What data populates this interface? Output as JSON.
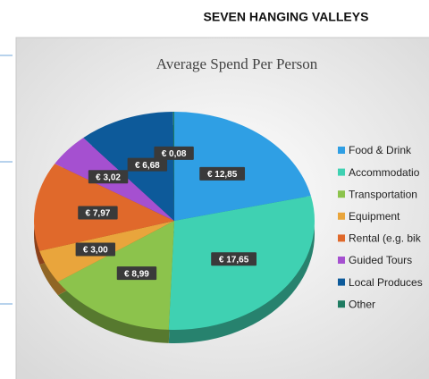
{
  "header": {
    "title": "SEVEN HANGING VALLEYS"
  },
  "chart_data": {
    "type": "pie",
    "title": "Average Spend Per Person",
    "categories": [
      "Food & Drink",
      "Accommodatio",
      "Transportation",
      "Equipment",
      "Rental (e.g. bik",
      "Guided Tours",
      "Local Produces",
      "Other"
    ],
    "values": [
      12.85,
      17.65,
      8.99,
      3.0,
      7.97,
      3.02,
      6.68,
      0.08
    ],
    "value_labels": [
      "€ 12,85",
      "€ 17,65",
      "€ 8,99",
      "€ 3,00",
      "€ 7,97",
      "€ 3,02",
      "€ 6,68",
      "€ 0,08"
    ],
    "colors": [
      "#2f9fe4",
      "#3fd1b2",
      "#8cc34c",
      "#e9a53c",
      "#e0692b",
      "#a550d0",
      "#0d5a9a",
      "#1f7c62"
    ],
    "legend": "right"
  }
}
